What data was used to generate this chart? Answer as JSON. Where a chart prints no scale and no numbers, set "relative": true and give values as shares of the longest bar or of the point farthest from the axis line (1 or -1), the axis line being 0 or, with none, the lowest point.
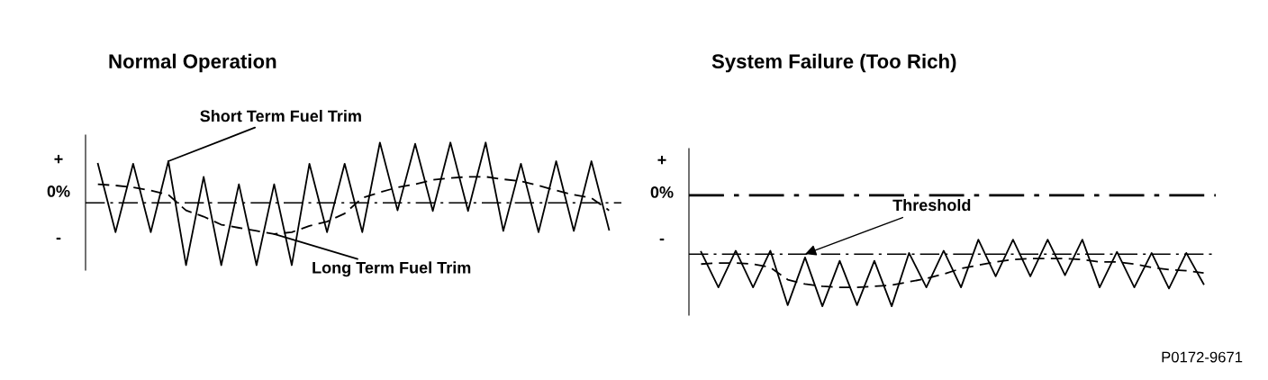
{
  "chart_data": [
    {
      "type": "line",
      "title": "Normal Operation",
      "relative": true,
      "legend": false,
      "grid": false,
      "marker": "none",
      "categories": [
        null,
        null,
        null,
        null,
        null,
        null,
        null,
        null,
        null,
        null,
        null,
        null,
        null,
        null,
        null,
        null,
        null,
        null,
        null,
        null,
        null,
        null,
        null,
        null,
        null,
        null,
        null,
        null,
        null,
        null
      ],
      "series": [
        {
          "name": "Short Term Fuel Trim",
          "color": "#000000",
          "line_style": "solid",
          "values": [
            0.63,
            -0.47,
            0.63,
            -0.47,
            0.67,
            -1,
            0.42,
            -1,
            0.3,
            -1,
            0.3,
            -1,
            0.63,
            -0.47,
            0.63,
            -0.47,
            0.97,
            -0.12,
            0.95,
            -0.13,
            0.97,
            -0.13,
            0.97,
            -0.45,
            0.63,
            -0.47,
            0.67,
            -0.45,
            0.67,
            -0.43
          ]
        },
        {
          "name": "Long Term Fuel Trim",
          "color": "#000000",
          "line_style": "dashed",
          "values": [
            0.3,
            0.28,
            0.25,
            0.2,
            0.13,
            -0.12,
            -0.22,
            -0.35,
            -0.4,
            -0.45,
            -0.5,
            -0.47,
            -0.37,
            -0.3,
            -0.17,
            0.08,
            0.17,
            0.25,
            0.3,
            0.37,
            0.4,
            0.42,
            0.42,
            0.38,
            0.35,
            0.28,
            0.2,
            0.13,
            0.08,
            -0.12
          ]
        }
      ],
      "ref_lines": [
        {
          "axis": "y",
          "value": 0,
          "label": null,
          "color": "#000000",
          "line_style": "dashdot"
        }
      ],
      "annotations": [
        "+",
        "0%",
        "-"
      ]
    },
    {
      "type": "line",
      "title": "System Failure (Too Rich)",
      "relative": true,
      "legend": false,
      "grid": false,
      "marker": "none",
      "categories": [
        null,
        null,
        null,
        null,
        null,
        null,
        null,
        null,
        null,
        null,
        null,
        null,
        null,
        null,
        null,
        null,
        null,
        null,
        null,
        null,
        null,
        null,
        null,
        null,
        null,
        null,
        null,
        null,
        null,
        null
      ],
      "series": [
        {
          "color": "#000000",
          "line_style": "solid",
          "values": [
            -0.51,
            -0.83,
            -0.5,
            -0.83,
            -0.5,
            -0.99,
            -0.56,
            -1,
            -0.59,
            -0.99,
            -0.59,
            -1,
            -0.52,
            -0.83,
            -0.5,
            -0.83,
            -0.4,
            -0.73,
            -0.4,
            -0.73,
            -0.4,
            -0.72,
            -0.4,
            -0.83,
            -0.51,
            -0.83,
            -0.52,
            -0.84,
            -0.52,
            -0.8
          ]
        },
        {
          "color": "#000000",
          "line_style": "dashed",
          "values": [
            -0.62,
            -0.61,
            -0.61,
            -0.62,
            -0.65,
            -0.76,
            -0.8,
            -0.82,
            -0.83,
            -0.83,
            -0.82,
            -0.81,
            -0.78,
            -0.75,
            -0.71,
            -0.66,
            -0.63,
            -0.6,
            -0.58,
            -0.57,
            -0.57,
            -0.57,
            -0.58,
            -0.6,
            -0.6,
            -0.62,
            -0.65,
            -0.67,
            -0.68,
            -0.7
          ]
        }
      ],
      "ref_lines": [
        {
          "axis": "y",
          "value": 0,
          "label": null,
          "color": "#000000",
          "line_style": "dashdot"
        },
        {
          "axis": "y",
          "value": -0.53,
          "label": "Threshold",
          "color": "#000000",
          "line_style": "dashdot"
        }
      ],
      "annotations": [
        "+",
        "0%",
        "-",
        "P0172-9671"
      ]
    }
  ]
}
